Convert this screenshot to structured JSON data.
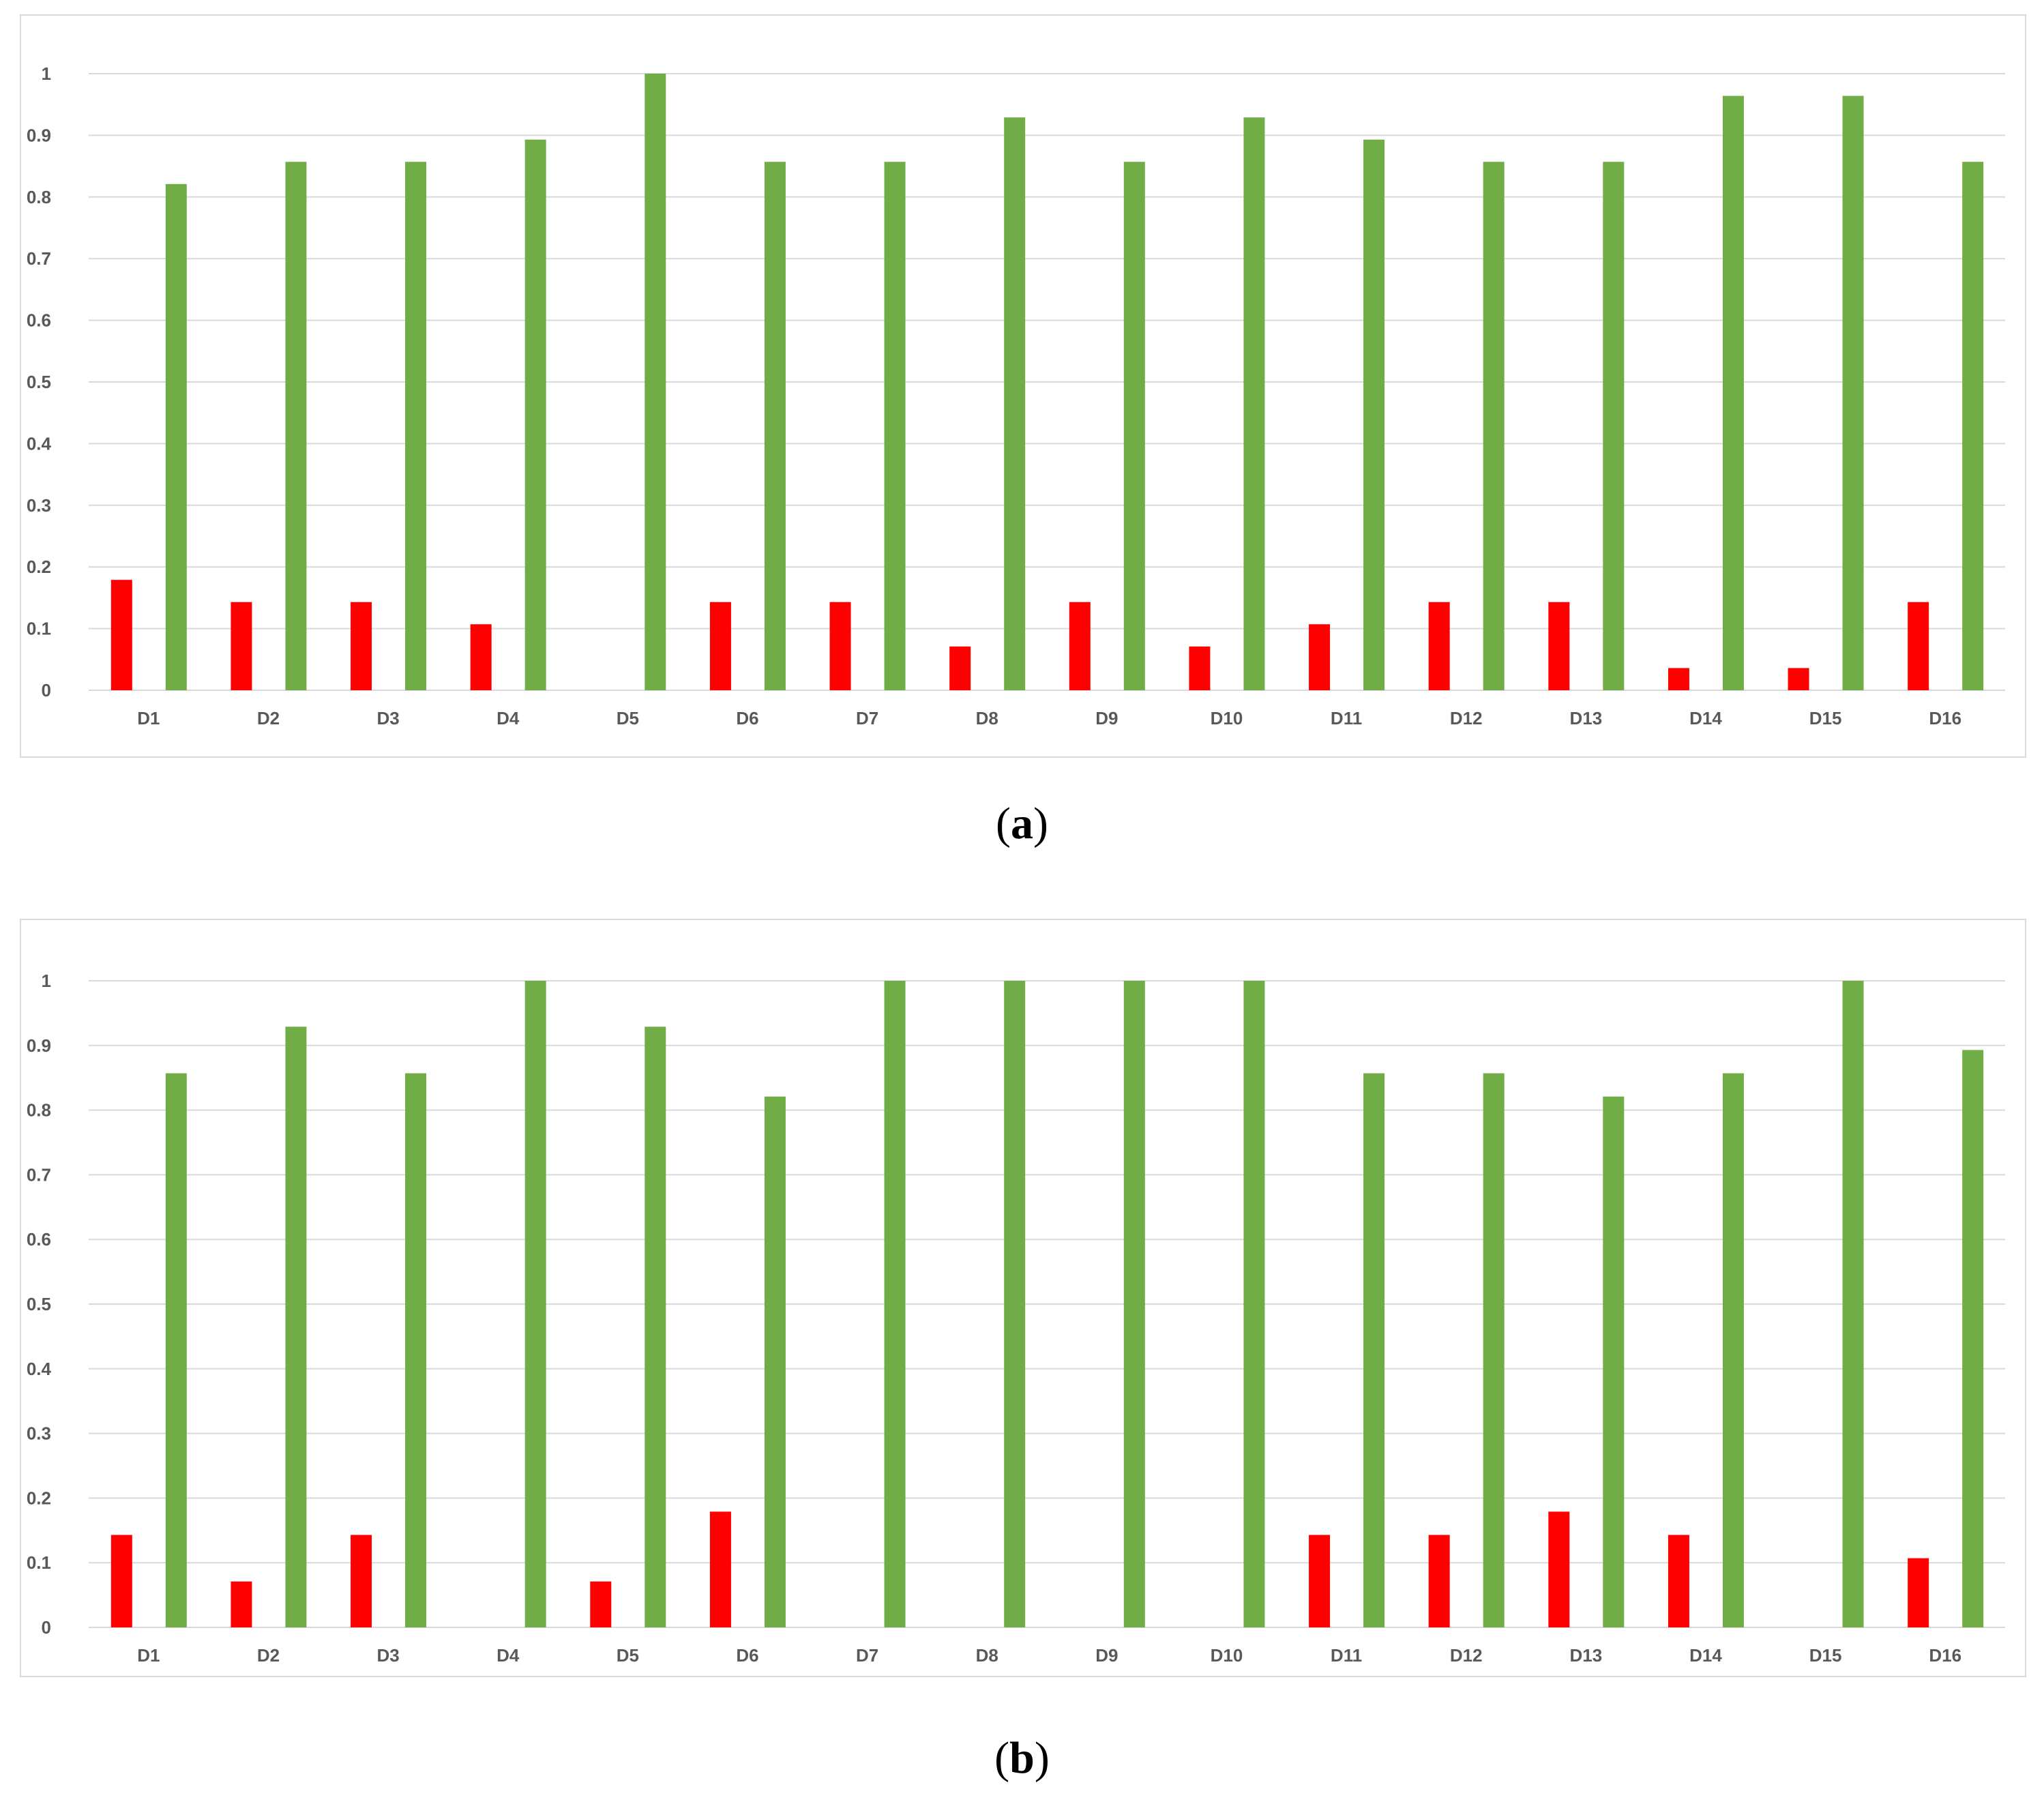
{
  "colors": {
    "series_red": "#ff0000",
    "series_green": "#70ad47",
    "grid": "#d9d9d9",
    "frame": "#d9d9d9",
    "text": "#595959"
  },
  "captions": {
    "a": "a",
    "b": "b"
  },
  "chart_data": [
    {
      "type": "bar",
      "panel": "a",
      "categories": [
        "D1",
        "D2",
        "D3",
        "D4",
        "D5",
        "D6",
        "D7",
        "D8",
        "D9",
        "D10",
        "D11",
        "D12",
        "D13",
        "D14",
        "D15",
        "D16"
      ],
      "yticks": [
        "0",
        "0.1",
        "0.2",
        "0.3",
        "0.4",
        "0.5",
        "0.6",
        "0.7",
        "0.8",
        "0.9",
        "1"
      ],
      "ylim": [
        0,
        1
      ],
      "grid": true,
      "legend": "none",
      "series": [
        {
          "color": "#ff0000",
          "values": [
            0.179,
            0.143,
            0.143,
            0.107,
            0,
            0.143,
            0.143,
            0.071,
            0.143,
            0.071,
            0.107,
            0.143,
            0.143,
            0.036,
            0.036,
            0.143
          ]
        },
        {
          "color": "#70ad47",
          "values": [
            0.821,
            0.857,
            0.857,
            0.893,
            1,
            0.857,
            0.857,
            0.929,
            0.857,
            0.929,
            0.893,
            0.857,
            0.857,
            0.964,
            0.964,
            0.857
          ]
        }
      ]
    },
    {
      "type": "bar",
      "panel": "b",
      "categories": [
        "D1",
        "D2",
        "D3",
        "D4",
        "D5",
        "D6",
        "D7",
        "D8",
        "D9",
        "D10",
        "D11",
        "D12",
        "D13",
        "D14",
        "D15",
        "D16"
      ],
      "yticks": [
        "0",
        "0.1",
        "0.2",
        "0.3",
        "0.4",
        "0.5",
        "0.6",
        "0.7",
        "0.8",
        "0.9",
        "1"
      ],
      "ylim": [
        0,
        1
      ],
      "grid": true,
      "legend": "none",
      "series": [
        {
          "color": "#ff0000",
          "values": [
            0.143,
            0.071,
            0.143,
            0,
            0.071,
            0.179,
            0,
            0,
            0,
            0,
            0.143,
            0.143,
            0.179,
            0.143,
            0,
            0.107
          ]
        },
        {
          "color": "#70ad47",
          "values": [
            0.857,
            0.929,
            0.857,
            1,
            0.929,
            0.821,
            1,
            1,
            1,
            1,
            0.857,
            0.857,
            0.821,
            0.857,
            1,
            0.893
          ]
        }
      ]
    }
  ]
}
